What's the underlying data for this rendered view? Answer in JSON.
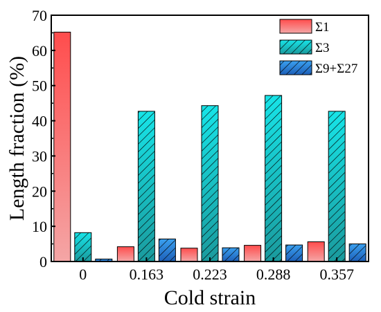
{
  "chart_data": {
    "type": "bar",
    "categories": [
      "0",
      "0.163",
      "0.223",
      "0.288",
      "0.357"
    ],
    "series": [
      {
        "name": "Σ1",
        "values": [
          65.2,
          4.2,
          3.8,
          4.6,
          5.6
        ],
        "color_top": "#ff4d4d",
        "color_bottom": "#f4a6a6",
        "hatch": false
      },
      {
        "name": "Σ3",
        "values": [
          8.2,
          42.7,
          44.3,
          47.2,
          42.7
        ],
        "color_top": "#17e4e8",
        "color_bottom": "#1a9a9d",
        "hatch": true
      },
      {
        "name": "Σ9+Σ27",
        "values": [
          0.7,
          6.4,
          3.9,
          4.7,
          5.0
        ],
        "color_top": "#3aa0f0",
        "color_bottom": "#1d5fb8",
        "hatch": true
      }
    ],
    "xlabel": "Cold strain",
    "ylabel": "Length fraction (%)",
    "ylim": [
      0,
      70
    ],
    "yticks": [
      "0",
      "10",
      "20",
      "30",
      "40",
      "50",
      "60",
      "70"
    ],
    "legend_position": "top-right",
    "grid": false
  }
}
